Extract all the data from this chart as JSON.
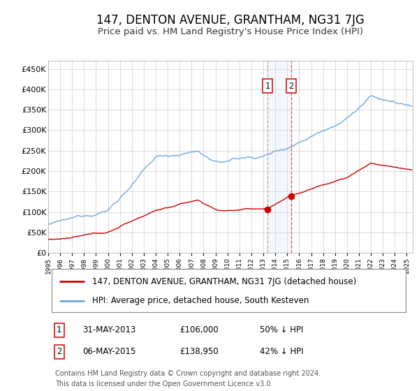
{
  "title": "147, DENTON AVENUE, GRANTHAM, NG31 7JG",
  "subtitle": "Price paid vs. HM Land Registry's House Price Index (HPI)",
  "ylim": [
    0,
    470000
  ],
  "yticks": [
    0,
    50000,
    100000,
    150000,
    200000,
    250000,
    300000,
    350000,
    400000,
    450000
  ],
  "ytick_labels": [
    "£0",
    "£50K",
    "£100K",
    "£150K",
    "£200K",
    "£250K",
    "£300K",
    "£350K",
    "£400K",
    "£450K"
  ],
  "legend_line1": "147, DENTON AVENUE, GRANTHAM, NG31 7JG (detached house)",
  "legend_line2": "HPI: Average price, detached house, South Kesteven",
  "transaction1_date": "31-MAY-2013",
  "transaction1_price": "£106,000",
  "transaction1_hpi": "50% ↓ HPI",
  "transaction2_date": "06-MAY-2015",
  "transaction2_price": "£138,950",
  "transaction2_hpi": "42% ↓ HPI",
  "footer1": "Contains HM Land Registry data © Crown copyright and database right 2024.",
  "footer2": "This data is licensed under the Open Government Licence v3.0.",
  "hpi_color": "#6fa8dc",
  "property_color": "#cc0000",
  "marker_color": "#cc0000",
  "vline1_color": "#aaaaaa",
  "vline2_color": "#dd5555",
  "vband_color": "#cce0f5",
  "background_color": "#ffffff",
  "grid_color": "#cccccc",
  "title_fontsize": 12,
  "subtitle_fontsize": 9.5,
  "tick_fontsize": 8,
  "legend_fontsize": 8.5,
  "annot_fontsize": 8.5,
  "footer_fontsize": 7
}
